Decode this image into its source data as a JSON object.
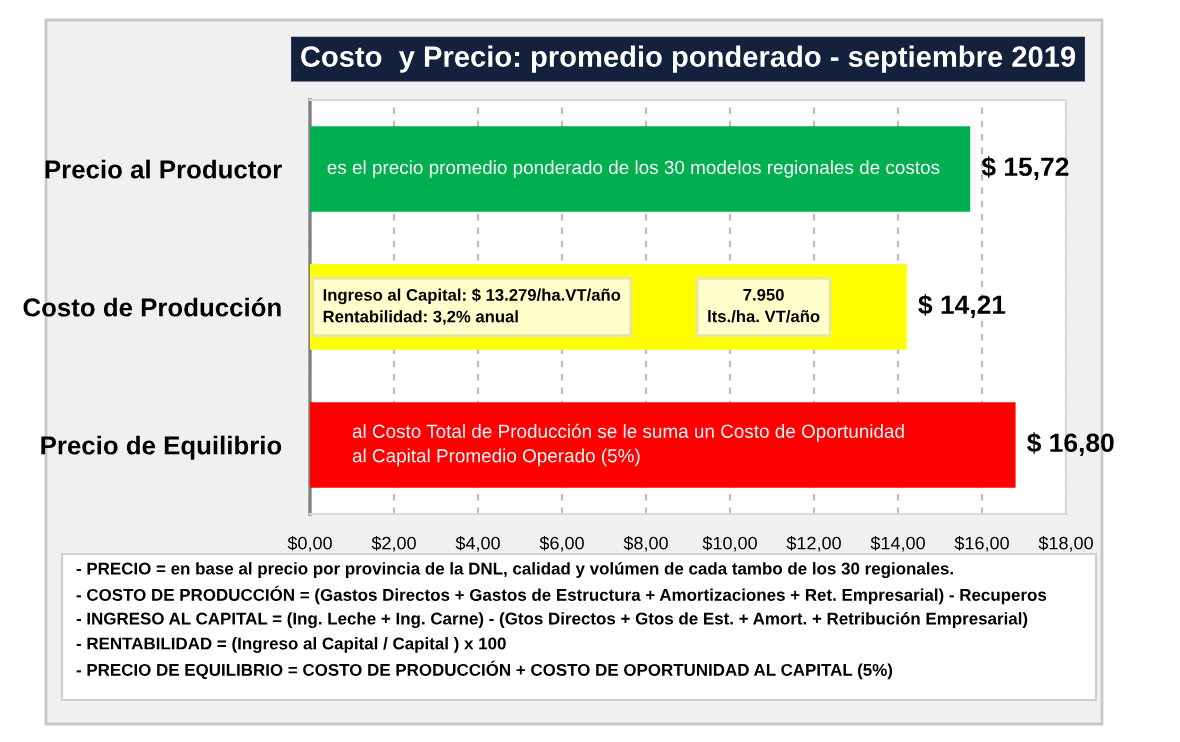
{
  "chart_data": {
    "type": "bar",
    "orientation": "horizontal",
    "title": "Costo  y Precio: promedio ponderado - septiembre 2019",
    "categories": [
      "Precio al Productor",
      "Costo de Producción",
      "Precio de Equilibrio"
    ],
    "values": [
      15.72,
      14.21,
      16.8
    ],
    "colors": [
      "#00b050",
      "#ffff00",
      "#ff0000"
    ],
    "value_labels": [
      "$ 15,72",
      "$ 14,21",
      "$ 16,80"
    ],
    "xlim": [
      0,
      18
    ],
    "xticks": [
      {
        "value": 0,
        "label": "$0,00"
      },
      {
        "value": 2,
        "label": "$2,00"
      },
      {
        "value": 4,
        "label": "$4,00"
      },
      {
        "value": 6,
        "label": "$6,00"
      },
      {
        "value": 8,
        "label": "$8,00"
      },
      {
        "value": 10,
        "label": "$10,00"
      },
      {
        "value": 12,
        "label": "$12,00"
      },
      {
        "value": 14,
        "label": "$14,00"
      },
      {
        "value": 16,
        "label": "$16,00"
      },
      {
        "value": 18,
        "label": "$18,00"
      }
    ],
    "grid": "x",
    "annotations": [
      "es el precio promedio ponderado de los 30 modelos regionales de costos",
      "Ingreso al Capital: $ 13.279/ha.VT/año\nRentabilidad: 3,2% anual",
      "7.950\nlts./ha. VT/año",
      "al Costo Total de Producción se le suma un Costo de Oportunidad\nal Capital Promedio Operado (5%)",
      "- PRECIO = en base al precio por provincia de la DNL, calidad y volúmen de cada tambo de los 30 regionales.",
      "- COSTO DE PRODUCCIÓN = (Gastos Directos + Gastos de Estructura + Amortizaciones + Ret. Empresarial) - Recuperos",
      "- INGRESO AL CAPITAL = (Ing. Leche + Ing. Carne) - (Gtos Directos + Gtos de Est. + Amort. + Retribución Empresarial)",
      "- RENTABILIDAD = (Ingreso al Capital / Capital ) x 100",
      "- PRECIO DE EQUILIBRIO = COSTO DE PRODUCCIÓN + COSTO DE OPORTUNIDAD AL CAPITAL (5%)"
    ]
  }
}
